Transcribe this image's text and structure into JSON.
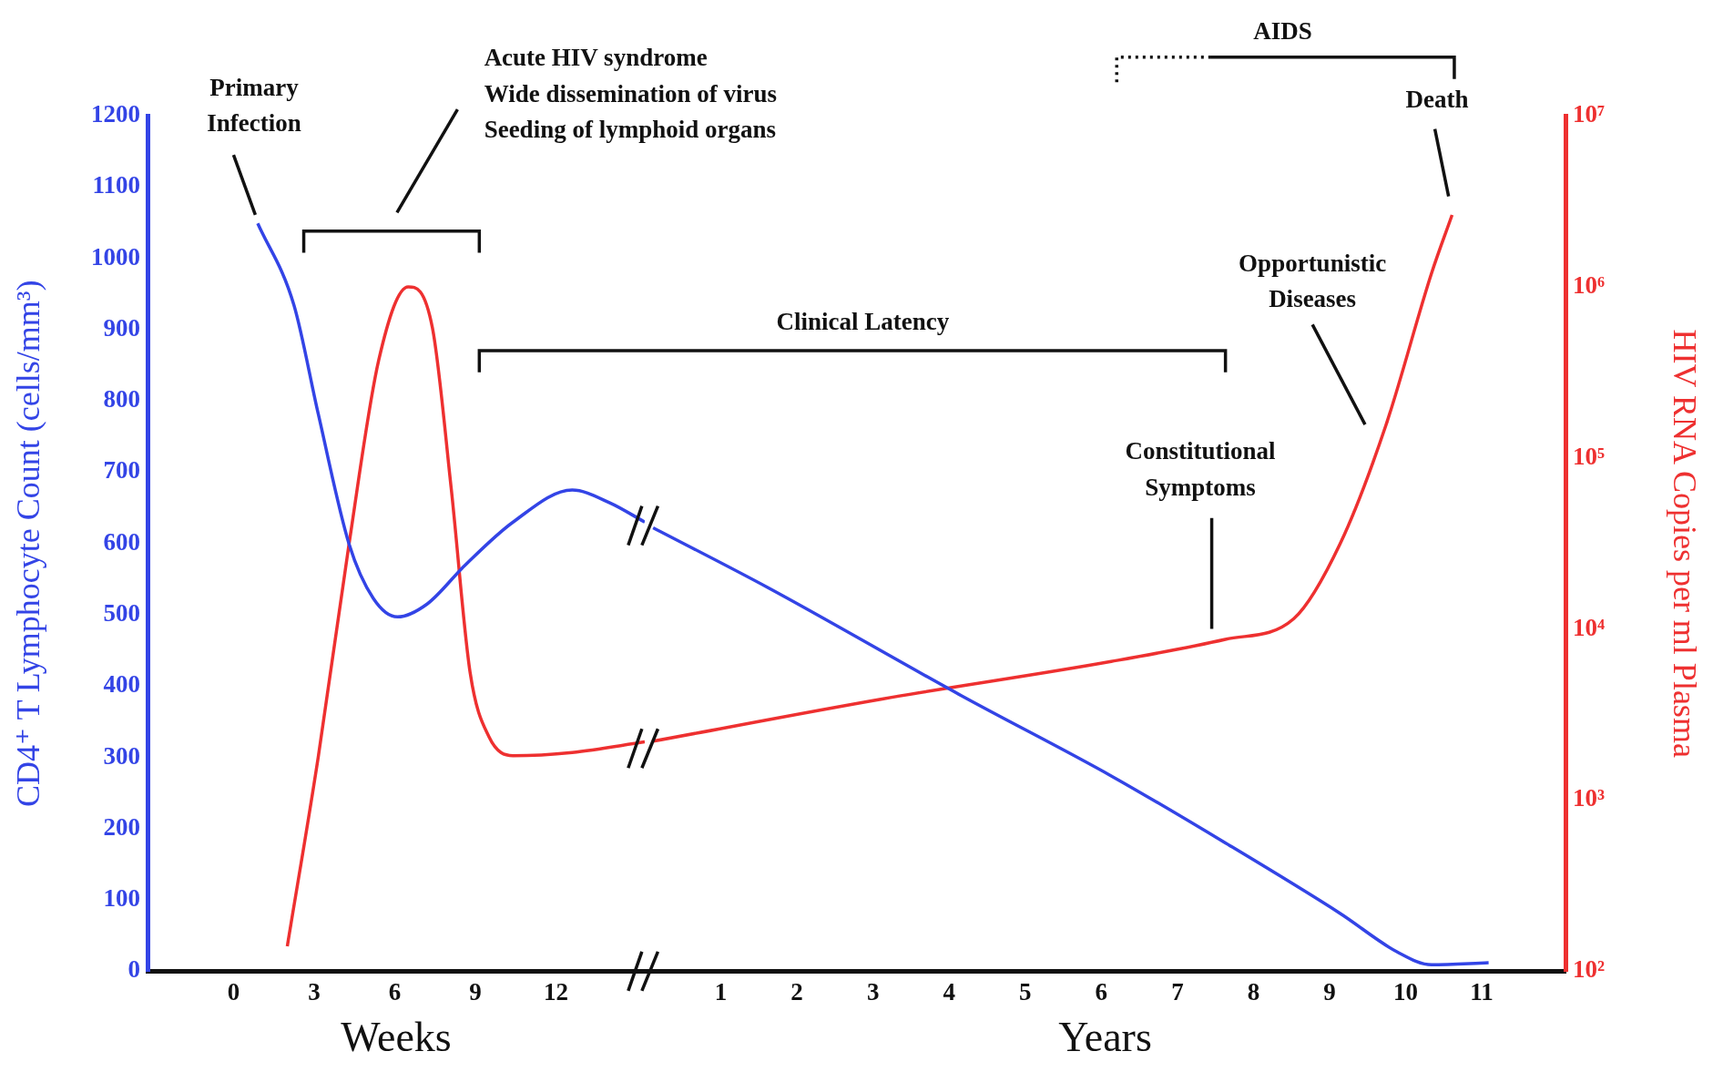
{
  "chart_data": [
    {
      "type": "line",
      "xlabel": "Weeks",
      "ylabel": "CD4⁺ T Lymphocyte Count (cells/mm³)",
      "annotations": [
        "Primary\nInfection",
        "Acute HIV syndrome\nWide dissemination of virus\nSeeding of lymphoid organs"
      ],
      "xlim": [
        -3.2,
        15.3
      ],
      "xticks": [
        0,
        3,
        6,
        9,
        12
      ],
      "ylim": [
        0,
        1200
      ],
      "yticks": [
        0,
        100,
        200,
        300,
        400,
        500,
        600,
        700,
        800,
        900,
        1000,
        1100,
        1200
      ],
      "y2lim": [
        100,
        10000000
      ],
      "log": "y2",
      "grid": false,
      "legend": false,
      "tick_labels": [
        "x",
        "y"
      ],
      "series": [
        {
          "color": "#3344e6",
          "x": [
            0.9,
            2.25,
            3.15,
            4.3,
            5.2,
            6.1,
            7.2,
            8.6,
            10.4,
            12.6,
            14.0,
            15.3
          ],
          "values": [
            1049,
            934,
            782,
            599,
            523,
            497,
            515,
            569,
            630,
            675,
            657,
            630
          ]
        },
        {
          "color": "#ee3030",
          "axis": "y2",
          "x": [
            2.0,
            3.15,
            4.3,
            5.4,
            6.5,
            7.4,
            8.1,
            8.8,
            9.5,
            10.4,
            12.6,
            15.3
          ],
          "values": [
            140,
            1780,
            31600,
            372000,
            1000000,
            575000,
            66000,
            5600,
            2350,
            1820,
            1900,
            2190
          ]
        }
      ]
    },
    {
      "type": "line",
      "xlabel": "Years",
      "y2label": "HIV RNA Copies per ml Plasma",
      "annotations": [
        "Clinical Latency",
        "Constitutional\nSymptoms",
        "Opportunistic\nDiseases",
        "AIDS",
        "Death"
      ],
      "xlim": [
        0,
        12.1
      ],
      "xticks": [
        1,
        2,
        3,
        4,
        5,
        6,
        7,
        8,
        9,
        10,
        11
      ],
      "ylim": [
        0,
        1200
      ],
      "y2lim": [
        100,
        10000000
      ],
      "y2ticks": [
        {
          "value": 100,
          "label": "10²"
        },
        {
          "value": 1000,
          "label": "10³"
        },
        {
          "value": 10000,
          "label": "10⁴"
        },
        {
          "value": 100000,
          "label": "10⁵"
        },
        {
          "value": 1000000,
          "label": "10⁶"
        },
        {
          "value": 10000000,
          "label": "10⁷"
        }
      ],
      "log": "y2",
      "grid": false,
      "legend": false,
      "tick_labels": [
        "x",
        "y2"
      ],
      "series": [
        {
          "color": "#3344e6",
          "x": [
            0.11,
            1.62,
            4.17,
            6.13,
            7.63,
            9.14,
            9.89,
            10.34,
            11.09
          ],
          "values": [
            622,
            538,
            386,
            274,
            180,
            81,
            27,
            9,
            12
          ]
        },
        {
          "color": "#ee3030",
          "axis": "y2",
          "x": [
            0.11,
            3.12,
            6.13,
            7.63,
            8.53,
            9.14,
            9.74,
            10.34,
            10.61
          ],
          "values": [
            2210,
            3900,
            6460,
            8700,
            11500,
            31600,
            155000,
            1200000,
            2630000
          ]
        }
      ]
    }
  ]
}
